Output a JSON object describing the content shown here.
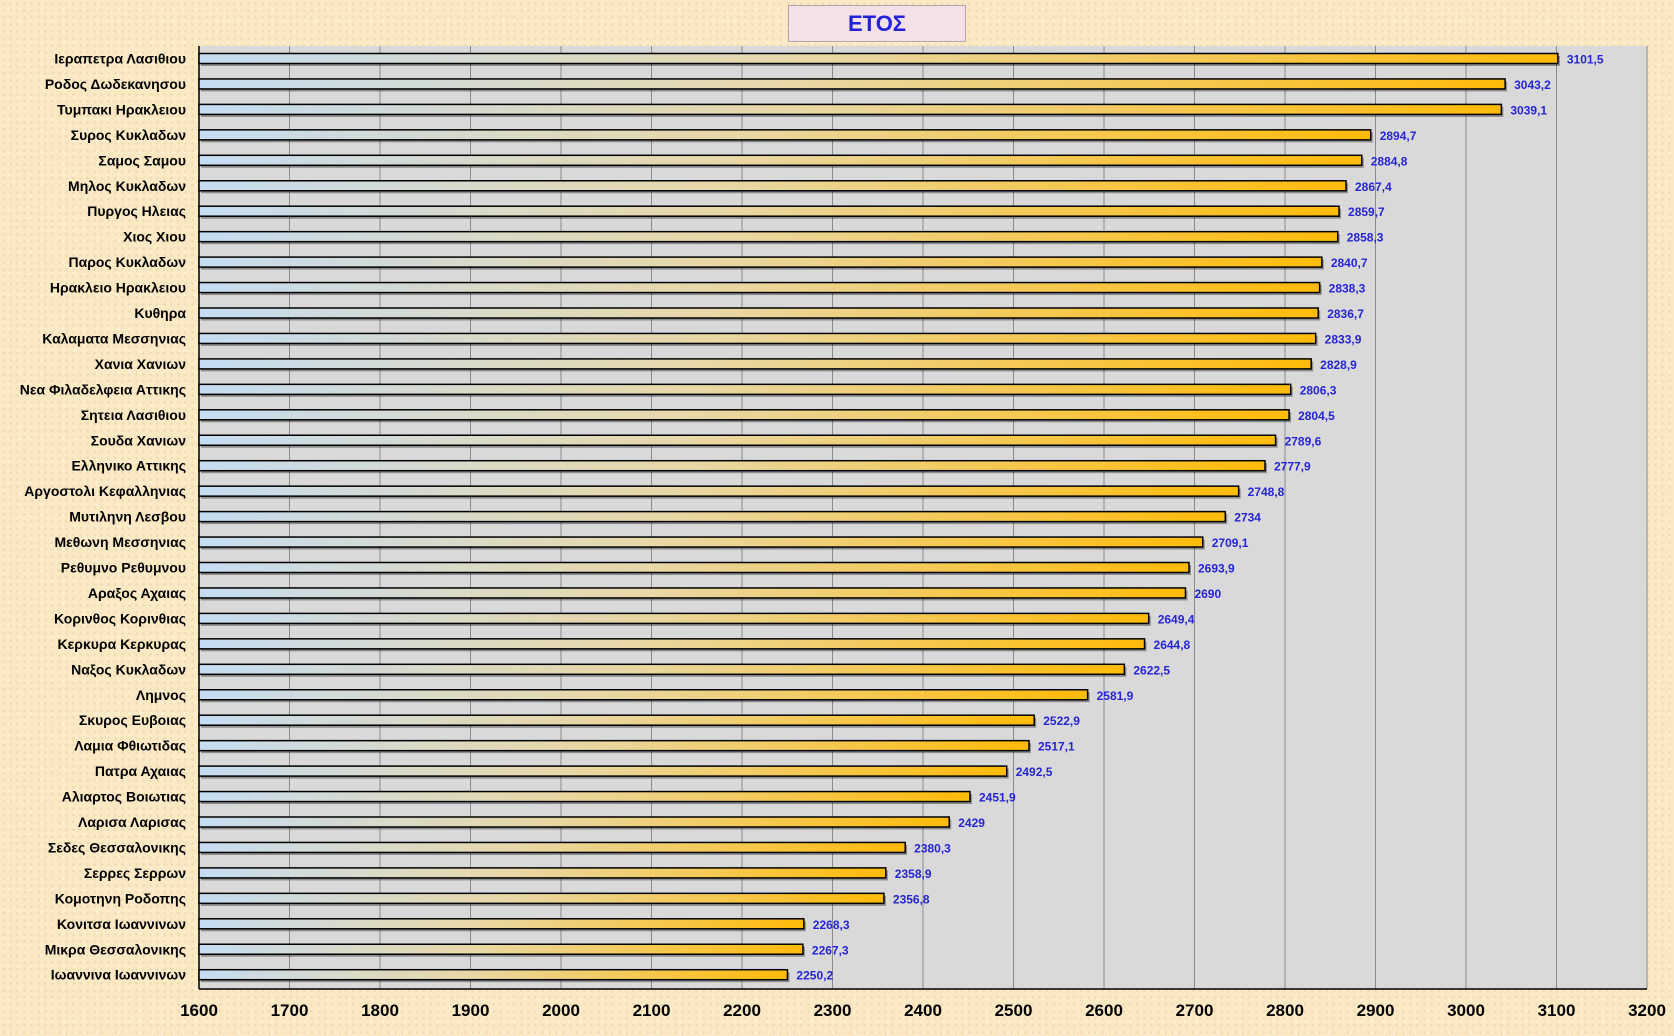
{
  "chart_data": {
    "type": "bar",
    "orientation": "horizontal",
    "title": "ΕΤΟΣ",
    "xlabel": "",
    "ylabel": "",
    "xlim": [
      1600,
      3200
    ],
    "x_ticks": [
      1600,
      1700,
      1800,
      1900,
      2000,
      2100,
      2200,
      2300,
      2400,
      2500,
      2600,
      2700,
      2800,
      2900,
      3000,
      3100,
      3200
    ],
    "grid": "vertical",
    "legend": "none",
    "colors": {
      "bar_start": "#c5dcf2",
      "bar_end": "#ffbb0a",
      "bar_outline": "#000000",
      "plot_background": "#d9d9d9",
      "value_label": "#2525d4",
      "title_text": "#2323d8"
    },
    "categories": [
      "Ιεραπετρα  Λασιθιου",
      "Ροδος Δωδεκανησου",
      "Τυμπακι Ηρακλειου",
      "Συρος Κυκλαδων",
      "Σαμος Σαμου",
      "Μηλος Κυκλαδων",
      "Πυργος Ηλειας",
      "Χιος Χιου",
      "Παρος Κυκλαδων",
      "Ηρακλειο Ηρακλειου",
      "Κυθηρα",
      "Καλαματα Μεσσηνιας",
      "Χανια Χανιων",
      "Νεα Φιλαδελφεια Αττικης",
      "Σητεια Λασιθιου",
      "Σουδα Χανιων",
      "Ελληνικο Αττικης",
      "Αργοστολι Κεφαλληνιας",
      "Μυτιληνη Λεσβου",
      "Μεθωνη Μεσσηνιας",
      "Ρεθυμνο Ρεθυμνου",
      "Αραξος Αχαιας",
      "Κορινθος Κορινθιας",
      "Κερκυρα Κερκυρας",
      "Ναξος Κυκλαδων",
      "Λημνος",
      "Σκυρος Ευβοιας",
      "Λαμια Φθιωτιδας",
      "Πατρα Αχαιας",
      "Αλιαρτος Βοιωτιας",
      "Λαρισα Λαρισας",
      "Σεδες Θεσσαλονικης",
      "Σερρες Σερρων",
      "Κομοτηνη Ροδοπης",
      "Κονιτσα Ιωαννινων",
      "Μικρα Θεσσαλονικης",
      "Ιωαννινα Ιωαννινων"
    ],
    "values": [
      3101.5,
      3043.2,
      3039.1,
      2894.7,
      2884.8,
      2867.4,
      2859.7,
      2858.3,
      2840.7,
      2838.3,
      2836.7,
      2833.9,
      2828.9,
      2806.3,
      2804.5,
      2789.6,
      2777.9,
      2748.8,
      2734,
      2709.1,
      2693.9,
      2690,
      2649.4,
      2644.8,
      2622.5,
      2581.9,
      2522.9,
      2517.1,
      2492.5,
      2451.9,
      2429,
      2380.3,
      2358.9,
      2356.8,
      2268.3,
      2267.3,
      2250.2
    ],
    "value_labels": [
      "3101,5",
      "3043,2",
      "3039,1",
      "2894,7",
      "2884,8",
      "2867,4",
      "2859,7",
      "2858,3",
      "2840,7",
      "2838,3",
      "2836,7",
      "2833,9",
      "2828,9",
      "2806,3",
      "2804,5",
      "2789,6",
      "2777,9",
      "2748,8",
      "2734",
      "2709,1",
      "2693,9",
      "2690",
      "2649,4",
      "2644,8",
      "2622,5",
      "2581,9",
      "2522,9",
      "2517,1",
      "2492,5",
      "2451,9",
      "2429",
      "2380,3",
      "2358,9",
      "2356,8",
      "2268,3",
      "2267,3",
      "2250,2"
    ]
  }
}
